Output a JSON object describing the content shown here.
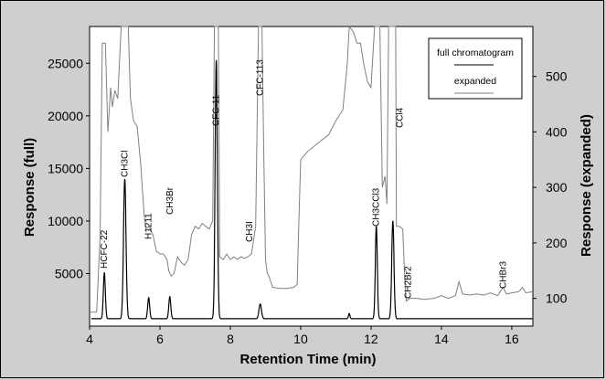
{
  "chart_data": {
    "type": "line",
    "title": "",
    "xlabel": "Retention Time   (min)",
    "ylabel_left": "Response (full)",
    "ylabel_right": "Response (expanded)",
    "xlim": [
      4.0,
      16.6
    ],
    "ylim_left": [
      0,
      28500
    ],
    "ylim_right": [
      50,
      590
    ],
    "x_ticks": [
      "4",
      "6",
      "8",
      "10",
      "12",
      "14",
      "16"
    ],
    "y_left_ticks": [
      "5000",
      "10000",
      "15000",
      "20000",
      "25000"
    ],
    "y_right_ticks": [
      "100",
      "200",
      "300",
      "400",
      "500"
    ],
    "legend": [
      "full chromatogram",
      "expanded"
    ],
    "series": [
      {
        "name": "full chromatogram",
        "color": "#000000",
        "baseline": 700,
        "peaks": [
          {
            "x": 4.42,
            "y": 5100,
            "w": 0.04
          },
          {
            "x": 5.0,
            "y": 14000,
            "w": 0.05
          },
          {
            "x": 5.68,
            "y": 2700,
            "w": 0.04
          },
          {
            "x": 6.28,
            "y": 2800,
            "w": 0.04
          },
          {
            "x": 7.6,
            "y": 25300,
            "w": 0.045
          },
          {
            "x": 8.85,
            "y": 2100,
            "w": 0.05
          },
          {
            "x": 11.38,
            "y": 1200,
            "w": 0.03
          },
          {
            "x": 12.15,
            "y": 9500,
            "w": 0.04
          },
          {
            "x": 12.62,
            "y": 10000,
            "w": 0.045
          },
          {
            "x": 13.1,
            "y": 700,
            "w": 0.03
          }
        ]
      },
      {
        "name": "expanded",
        "color": "#808080",
        "points": [
          [
            4.0,
            75
          ],
          [
            4.2,
            75
          ],
          [
            4.3,
            210
          ],
          [
            4.36,
            560
          ],
          [
            4.45,
            560
          ],
          [
            4.52,
            400
          ],
          [
            4.6,
            480
          ],
          [
            4.65,
            445
          ],
          [
            4.72,
            475
          ],
          [
            4.8,
            460
          ],
          [
            4.9,
            590
          ],
          [
            5.1,
            590
          ],
          [
            5.16,
            460
          ],
          [
            5.25,
            420
          ],
          [
            5.35,
            410
          ],
          [
            5.45,
            345
          ],
          [
            5.55,
            250
          ],
          [
            5.6,
            225
          ],
          [
            5.68,
            230
          ],
          [
            5.72,
            225
          ],
          [
            5.8,
            215
          ],
          [
            5.9,
            185
          ],
          [
            6.0,
            180
          ],
          [
            6.1,
            180
          ],
          [
            6.2,
            170
          ],
          [
            6.25,
            150
          ],
          [
            6.32,
            140
          ],
          [
            6.4,
            145
          ],
          [
            6.5,
            175
          ],
          [
            6.6,
            165
          ],
          [
            6.7,
            160
          ],
          [
            6.8,
            170
          ],
          [
            6.9,
            215
          ],
          [
            7.0,
            230
          ],
          [
            7.1,
            225
          ],
          [
            7.2,
            235
          ],
          [
            7.3,
            230
          ],
          [
            7.4,
            225
          ],
          [
            7.5,
            240
          ],
          [
            7.55,
            590
          ],
          [
            7.66,
            590
          ],
          [
            7.7,
            175
          ],
          [
            7.8,
            170
          ],
          [
            7.9,
            180
          ],
          [
            8.0,
            170
          ],
          [
            8.1,
            175
          ],
          [
            8.2,
            170
          ],
          [
            8.3,
            175
          ],
          [
            8.4,
            172
          ],
          [
            8.5,
            175
          ],
          [
            8.6,
            180
          ],
          [
            8.72,
            230
          ],
          [
            8.8,
            590
          ],
          [
            8.9,
            590
          ],
          [
            8.95,
            370
          ],
          [
            9.0,
            170
          ],
          [
            9.05,
            145
          ],
          [
            9.1,
            140
          ],
          [
            9.2,
            120
          ],
          [
            9.4,
            118
          ],
          [
            9.6,
            118
          ],
          [
            9.8,
            120
          ],
          [
            9.9,
            125
          ],
          [
            9.95,
            240
          ],
          [
            10.0,
            350
          ],
          [
            10.2,
            365
          ],
          [
            10.4,
            375
          ],
          [
            10.6,
            385
          ],
          [
            10.8,
            395
          ],
          [
            11.0,
            420
          ],
          [
            11.2,
            440
          ],
          [
            11.32,
            520
          ],
          [
            11.38,
            590
          ],
          [
            11.5,
            580
          ],
          [
            11.6,
            560
          ],
          [
            11.7,
            560
          ],
          [
            11.8,
            520
          ],
          [
            11.9,
            490
          ],
          [
            12.0,
            480
          ],
          [
            12.1,
            590
          ],
          [
            12.25,
            590
          ],
          [
            12.32,
            300
          ],
          [
            12.4,
            320
          ],
          [
            12.45,
            270
          ],
          [
            12.5,
            590
          ],
          [
            12.7,
            590
          ],
          [
            12.72,
            230
          ],
          [
            12.8,
            230
          ],
          [
            12.9,
            225
          ],
          [
            12.95,
            150
          ],
          [
            13.0,
            95
          ],
          [
            13.1,
            100
          ],
          [
            13.3,
            100
          ],
          [
            13.5,
            98
          ],
          [
            13.8,
            100
          ],
          [
            14.0,
            105
          ],
          [
            14.2,
            100
          ],
          [
            14.4,
            105
          ],
          [
            14.5,
            130
          ],
          [
            14.6,
            108
          ],
          [
            14.8,
            106
          ],
          [
            15.0,
            108
          ],
          [
            15.2,
            106
          ],
          [
            15.4,
            110
          ],
          [
            15.6,
            105
          ],
          [
            15.75,
            120
          ],
          [
            15.85,
            108
          ],
          [
            16.0,
            110
          ],
          [
            16.2,
            112
          ],
          [
            16.3,
            120
          ],
          [
            16.4,
            110
          ],
          [
            16.6,
            112
          ]
        ]
      }
    ],
    "annotations": [
      {
        "text": "HCFC-22",
        "x": 4.42
      },
      {
        "text": "CH3Cl",
        "x": 5.0
      },
      {
        "text": "H1211",
        "x": 5.68
      },
      {
        "text": "CH3Br",
        "x": 6.28
      },
      {
        "text": "CFC-11",
        "x": 7.6
      },
      {
        "text": "CH3I",
        "x": 8.55
      },
      {
        "text": "CFC-113",
        "x": 8.85
      },
      {
        "text": "CH3CCl3",
        "x": 12.15
      },
      {
        "text": "CCl4",
        "x": 12.82
      },
      {
        "text": "CH2Br2",
        "x": 13.05
      },
      {
        "text": "CHBr3",
        "x": 15.75
      }
    ]
  }
}
